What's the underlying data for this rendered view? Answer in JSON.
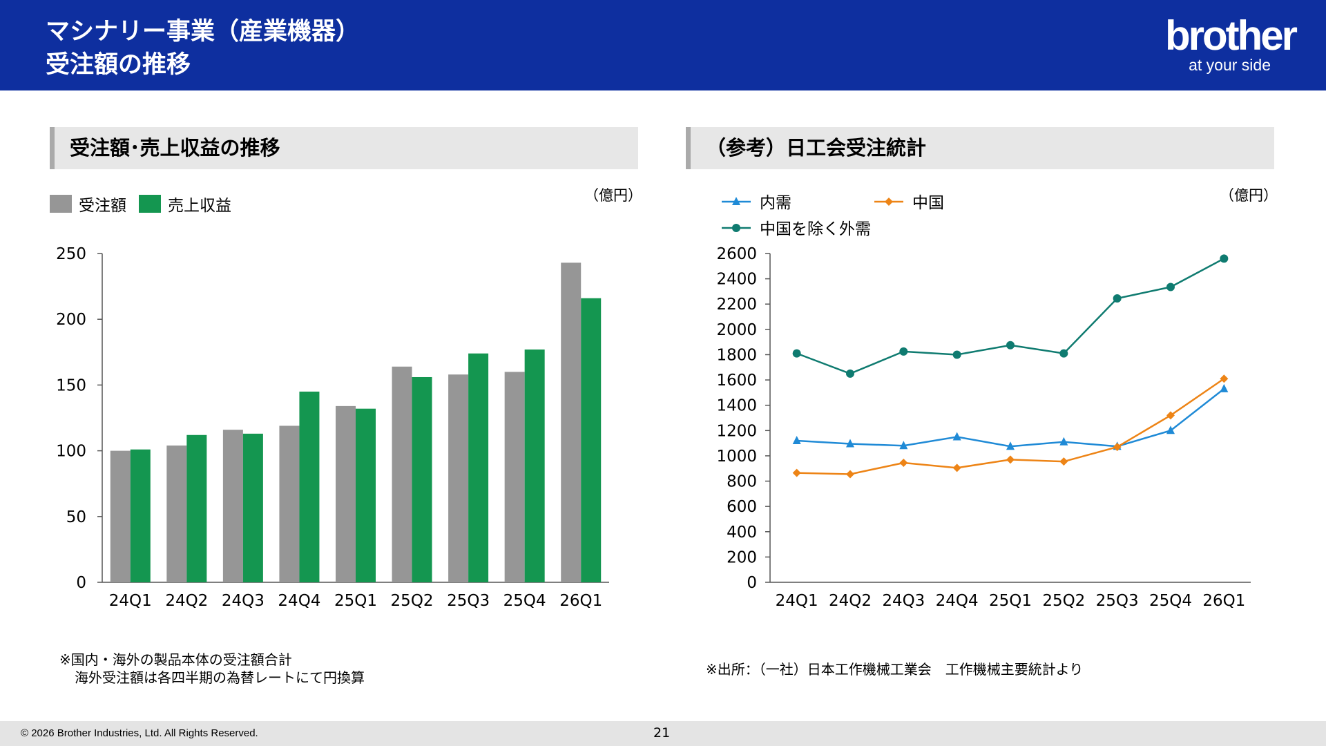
{
  "header": {
    "title_line1": "マシナリー事業（産業機器）",
    "title_line2": "受注額の推移",
    "logo_main": "brother",
    "logo_tagline": "at your side"
  },
  "left_panel": {
    "section_title": "受注額･売上収益の推移",
    "unit": "（億円）",
    "note_line1": "※国内・海外の製品本体の受注額合計",
    "note_line2": "海外受注額は各四半期の為替レートにて円換算"
  },
  "right_panel": {
    "section_title": "（参考）日工会受注統計",
    "unit": "（億円）",
    "note": "※出所：（一社）日本工作機械工業会　工作機械主要統計より"
  },
  "colors": {
    "header_bg": "#0e2f9f",
    "orders": "#969696",
    "revenue": "#149650",
    "domestic": "#1f8ad6",
    "china": "#ed8416",
    "overseas_ex_china": "#0f7b70"
  },
  "chart_data": [
    {
      "type": "bar",
      "categories": [
        "24Q1",
        "24Q2",
        "24Q3",
        "24Q4",
        "25Q1",
        "25Q2",
        "25Q3",
        "25Q4",
        "26Q1"
      ],
      "series": [
        {
          "name": "受注額",
          "values": [
            100,
            104,
            116,
            119,
            134,
            164,
            158,
            160,
            243
          ],
          "color": "#969696"
        },
        {
          "name": "売上収益",
          "values": [
            101,
            112,
            113,
            145,
            132,
            156,
            174,
            177,
            216
          ],
          "color": "#149650"
        }
      ],
      "ylim": [
        0,
        250
      ],
      "yticks": [
        0,
        50,
        100,
        150,
        200,
        250
      ],
      "legend_position": "top-left",
      "grid": false
    },
    {
      "type": "line",
      "categories": [
        "24Q1",
        "24Q2",
        "24Q3",
        "24Q4",
        "25Q1",
        "25Q2",
        "25Q3",
        "25Q4",
        "26Q1"
      ],
      "series": [
        {
          "name": "内需",
          "values": [
            1120,
            1095,
            1080,
            1150,
            1075,
            1110,
            1075,
            1200,
            1530
          ],
          "color": "#1f8ad6",
          "marker": "triangle"
        },
        {
          "name": "中国",
          "values": [
            865,
            855,
            945,
            905,
            970,
            955,
            1070,
            1320,
            1610
          ],
          "color": "#ed8416",
          "marker": "diamond"
        },
        {
          "name": "中国を除く外需",
          "values": [
            1810,
            1650,
            1825,
            1800,
            1875,
            1810,
            2245,
            2335,
            2560
          ],
          "color": "#0f7b70",
          "marker": "circle"
        }
      ],
      "ylim": [
        0,
        2600
      ],
      "yticks": [
        0,
        200,
        400,
        600,
        800,
        1000,
        1200,
        1400,
        1600,
        1800,
        2000,
        2200,
        2400,
        2600
      ],
      "legend_position": "top-left",
      "grid": false
    }
  ],
  "footer": {
    "copyright": "© 2026 Brother Industries, Ltd. All Rights Reserved.",
    "page_number": "21"
  }
}
